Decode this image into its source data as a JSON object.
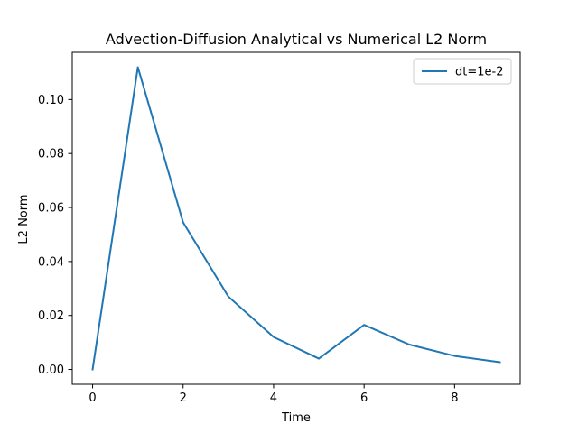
{
  "chart_data": {
    "type": "line",
    "title": "Advection-Diffusion Analytical vs Numerical L2 Norm",
    "xlabel": "Time",
    "ylabel": "L2 Norm",
    "xlim": [
      -0.45,
      9.45
    ],
    "ylim": [
      -0.0055,
      0.1175
    ],
    "xticks": [
      0,
      2,
      4,
      6,
      8
    ],
    "xtick_labels": [
      "0",
      "2",
      "4",
      "6",
      "8"
    ],
    "yticks": [
      0.0,
      0.02,
      0.04,
      0.06,
      0.08,
      0.1
    ],
    "ytick_labels": [
      "0.00",
      "0.02",
      "0.04",
      "0.06",
      "0.08",
      "0.10"
    ],
    "grid": false,
    "legend_position": "upper right",
    "series": [
      {
        "name": "dt=1e-2",
        "color": "#1f77b4",
        "x": [
          0,
          1,
          2,
          3,
          4,
          5,
          6,
          7,
          8,
          9
        ],
        "y": [
          0.0,
          0.112,
          0.0545,
          0.027,
          0.012,
          0.004,
          0.0165,
          0.0092,
          0.005,
          0.0027
        ]
      }
    ]
  }
}
